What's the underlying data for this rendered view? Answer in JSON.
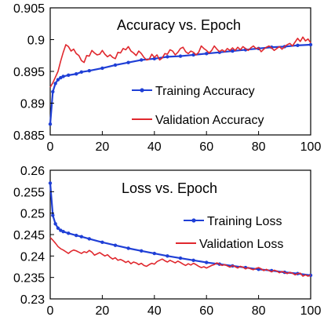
{
  "chart_data": [
    {
      "type": "line",
      "title": "Accuracy vs. Epoch",
      "xlabel": "",
      "ylabel": "",
      "xlim": [
        0,
        100
      ],
      "ylim": [
        0.885,
        0.905
      ],
      "xticks": [
        "0",
        "20",
        "40",
        "60",
        "80",
        "100"
      ],
      "yticks": [
        "0.885",
        "0.89",
        "0.895",
        "0.9",
        "0.905"
      ],
      "grid": false,
      "legend_position": "bottom-right",
      "series": [
        {
          "name": "Training Accuracy",
          "color": "#1f3fd6",
          "marker": "dot",
          "points": [
            [
              0,
              0.8867
            ],
            [
              1,
              0.8918
            ],
            [
              2,
              0.8931
            ],
            [
              3,
              0.8937
            ],
            [
              4,
              0.894
            ],
            [
              5,
              0.8942
            ],
            [
              7,
              0.8944
            ],
            [
              10,
              0.8946
            ],
            [
              12,
              0.8949
            ],
            [
              15,
              0.8951
            ],
            [
              20,
              0.8955
            ],
            [
              25,
              0.896
            ],
            [
              30,
              0.8964
            ],
            [
              35,
              0.8968
            ],
            [
              40,
              0.897
            ],
            [
              45,
              0.8973
            ],
            [
              50,
              0.8974
            ],
            [
              55,
              0.8976
            ],
            [
              60,
              0.8978
            ],
            [
              65,
              0.898
            ],
            [
              70,
              0.8982
            ],
            [
              75,
              0.8984
            ],
            [
              80,
              0.8986
            ],
            [
              85,
              0.8988
            ],
            [
              90,
              0.8989
            ],
            [
              95,
              0.8991
            ],
            [
              100,
              0.8992
            ]
          ]
        },
        {
          "name": "Validation Accuracy",
          "color": "#e0282e",
          "marker": "none",
          "points": [
            [
              0,
              0.8925
            ],
            [
              1,
              0.8932
            ],
            [
              2,
              0.8941
            ],
            [
              3,
              0.895
            ],
            [
              4,
              0.8966
            ],
            [
              5,
              0.898
            ],
            [
              6,
              0.8992
            ],
            [
              7,
              0.8989
            ],
            [
              8,
              0.8982
            ],
            [
              9,
              0.8985
            ],
            [
              10,
              0.8978
            ],
            [
              11,
              0.8975
            ],
            [
              12,
              0.8967
            ],
            [
              13,
              0.8964
            ],
            [
              14,
              0.8975
            ],
            [
              15,
              0.8974
            ],
            [
              16,
              0.8983
            ],
            [
              17,
              0.8979
            ],
            [
              18,
              0.8976
            ],
            [
              19,
              0.8977
            ],
            [
              20,
              0.8983
            ],
            [
              21,
              0.8977
            ],
            [
              22,
              0.8973
            ],
            [
              23,
              0.8976
            ],
            [
              24,
              0.8972
            ],
            [
              25,
              0.897
            ],
            [
              26,
              0.898
            ],
            [
              27,
              0.8979
            ],
            [
              28,
              0.8986
            ],
            [
              29,
              0.8984
            ],
            [
              30,
              0.8989
            ],
            [
              31,
              0.8982
            ],
            [
              32,
              0.8979
            ],
            [
              33,
              0.8975
            ],
            [
              34,
              0.8982
            ],
            [
              35,
              0.8978
            ],
            [
              36,
              0.8972
            ],
            [
              37,
              0.8968
            ],
            [
              38,
              0.8969
            ],
            [
              39,
              0.8977
            ],
            [
              40,
              0.8972
            ],
            [
              41,
              0.8976
            ],
            [
              42,
              0.8968
            ],
            [
              43,
              0.8971
            ],
            [
              44,
              0.8978
            ],
            [
              45,
              0.8977
            ],
            [
              46,
              0.8984
            ],
            [
              47,
              0.8982
            ],
            [
              48,
              0.8976
            ],
            [
              49,
              0.898
            ],
            [
              50,
              0.8986
            ],
            [
              51,
              0.8988
            ],
            [
              52,
              0.8981
            ],
            [
              53,
              0.8978
            ],
            [
              54,
              0.8982
            ],
            [
              55,
              0.898
            ],
            [
              56,
              0.8976
            ],
            [
              57,
              0.898
            ],
            [
              58,
              0.899
            ],
            [
              59,
              0.8986
            ],
            [
              60,
              0.8983
            ],
            [
              61,
              0.8979
            ],
            [
              62,
              0.8983
            ],
            [
              63,
              0.899
            ],
            [
              64,
              0.8985
            ],
            [
              65,
              0.8981
            ],
            [
              66,
              0.8984
            ],
            [
              67,
              0.8981
            ],
            [
              68,
              0.8986
            ],
            [
              69,
              0.8983
            ],
            [
              70,
              0.8987
            ],
            [
              71,
              0.8983
            ],
            [
              72,
              0.8988
            ],
            [
              73,
              0.8984
            ],
            [
              74,
              0.8989
            ],
            [
              75,
              0.8986
            ],
            [
              76,
              0.8983
            ],
            [
              77,
              0.8987
            ],
            [
              78,
              0.899
            ],
            [
              79,
              0.8986
            ],
            [
              80,
              0.8987
            ],
            [
              81,
              0.8981
            ],
            [
              82,
              0.8985
            ],
            [
              83,
              0.8988
            ],
            [
              84,
              0.899
            ],
            [
              85,
              0.8987
            ],
            [
              86,
              0.8983
            ],
            [
              87,
              0.8986
            ],
            [
              88,
              0.8989
            ],
            [
              89,
              0.8985
            ],
            [
              90,
              0.8989
            ],
            [
              91,
              0.8992
            ],
            [
              92,
              0.8994
            ],
            [
              93,
              0.899
            ],
            [
              94,
              0.8996
            ],
            [
              95,
              0.9002
            ],
            [
              96,
              0.8997
            ],
            [
              97,
              0.9004
            ],
            [
              98,
              0.8998
            ],
            [
              99,
              0.9001
            ],
            [
              100,
              0.8995
            ]
          ]
        }
      ]
    },
    {
      "type": "line",
      "title": "Loss vs. Epoch",
      "xlabel": "",
      "ylabel": "",
      "xlim": [
        0,
        100
      ],
      "ylim": [
        0.23,
        0.26
      ],
      "xticks": [
        "0",
        "20",
        "40",
        "60",
        "80",
        "100"
      ],
      "yticks": [
        "0.23",
        "0.235",
        "0.24",
        "0.245",
        "0.25",
        "0.255",
        "0.26"
      ],
      "grid": false,
      "legend_position": "top-right",
      "series": [
        {
          "name": "Training Loss",
          "color": "#1f3fd6",
          "marker": "dot",
          "points": [
            [
              0,
              0.257
            ],
            [
              1,
              0.2495
            ],
            [
              2,
              0.2475
            ],
            [
              3,
              0.2465
            ],
            [
              4,
              0.246
            ],
            [
              5,
              0.2457
            ],
            [
              7,
              0.2453
            ],
            [
              10,
              0.2448
            ],
            [
              12,
              0.2445
            ],
            [
              15,
              0.244
            ],
            [
              20,
              0.2432
            ],
            [
              25,
              0.2425
            ],
            [
              30,
              0.2418
            ],
            [
              35,
              0.2412
            ],
            [
              40,
              0.2406
            ],
            [
              45,
              0.24
            ],
            [
              50,
              0.2395
            ],
            [
              55,
              0.239
            ],
            [
              60,
              0.2385
            ],
            [
              65,
              0.2381
            ],
            [
              70,
              0.2377
            ],
            [
              75,
              0.2373
            ],
            [
              80,
              0.2369
            ],
            [
              85,
              0.2366
            ],
            [
              90,
              0.2362
            ],
            [
              95,
              0.2359
            ],
            [
              100,
              0.2355
            ]
          ]
        },
        {
          "name": "Validation Loss",
          "color": "#e0282e",
          "marker": "none",
          "points": [
            [
              0,
              0.2443
            ],
            [
              1,
              0.2437
            ],
            [
              2,
              0.243
            ],
            [
              3,
              0.2422
            ],
            [
              4,
              0.2417
            ],
            [
              5,
              0.2414
            ],
            [
              6,
              0.241
            ],
            [
              7,
              0.2406
            ],
            [
              8,
              0.2411
            ],
            [
              9,
              0.2414
            ],
            [
              10,
              0.2412
            ],
            [
              11,
              0.2409
            ],
            [
              12,
              0.2406
            ],
            [
              13,
              0.241
            ],
            [
              14,
              0.2408
            ],
            [
              15,
              0.2413
            ],
            [
              16,
              0.2409
            ],
            [
              17,
              0.2402
            ],
            [
              18,
              0.2405
            ],
            [
              19,
              0.2408
            ],
            [
              20,
              0.2404
            ],
            [
              21,
              0.24
            ],
            [
              22,
              0.2403
            ],
            [
              23,
              0.2397
            ],
            [
              24,
              0.2393
            ],
            [
              25,
              0.2396
            ],
            [
              26,
              0.239
            ],
            [
              27,
              0.2392
            ],
            [
              28,
              0.2389
            ],
            [
              29,
              0.2385
            ],
            [
              30,
              0.2388
            ],
            [
              31,
              0.2382
            ],
            [
              32,
              0.2386
            ],
            [
              33,
              0.2384
            ],
            [
              34,
              0.238
            ],
            [
              35,
              0.2383
            ],
            [
              36,
              0.2378
            ],
            [
              37,
              0.2376
            ],
            [
              38,
              0.238
            ],
            [
              39,
              0.2383
            ],
            [
              40,
              0.2381
            ],
            [
              41,
              0.2387
            ],
            [
              42,
              0.239
            ],
            [
              43,
              0.2393
            ],
            [
              44,
              0.2389
            ],
            [
              45,
              0.2386
            ],
            [
              46,
              0.239
            ],
            [
              47,
              0.2387
            ],
            [
              48,
              0.2384
            ],
            [
              49,
              0.2388
            ],
            [
              50,
              0.2385
            ],
            [
              51,
              0.2381
            ],
            [
              52,
              0.2378
            ],
            [
              53,
              0.2382
            ],
            [
              54,
              0.2379
            ],
            [
              55,
              0.2383
            ],
            [
              56,
              0.238
            ],
            [
              57,
              0.2376
            ],
            [
              58,
              0.2373
            ],
            [
              59,
              0.2375
            ],
            [
              60,
              0.2372
            ],
            [
              61,
              0.2375
            ],
            [
              62,
              0.2378
            ],
            [
              63,
              0.238
            ],
            [
              64,
              0.2384
            ],
            [
              65,
              0.2381
            ],
            [
              66,
              0.2378
            ],
            [
              67,
              0.238
            ],
            [
              68,
              0.2377
            ],
            [
              69,
              0.2374
            ],
            [
              70,
              0.2378
            ],
            [
              71,
              0.2375
            ],
            [
              72,
              0.2372
            ],
            [
              73,
              0.2376
            ],
            [
              74,
              0.2374
            ],
            [
              75,
              0.237
            ],
            [
              76,
              0.2373
            ],
            [
              77,
              0.237
            ],
            [
              78,
              0.2368
            ],
            [
              79,
              0.2371
            ],
            [
              80,
              0.2373
            ],
            [
              81,
              0.237
            ],
            [
              82,
              0.2366
            ],
            [
              83,
              0.2369
            ],
            [
              84,
              0.2366
            ],
            [
              85,
              0.2363
            ],
            [
              86,
              0.2367
            ],
            [
              87,
              0.2365
            ],
            [
              88,
              0.2361
            ],
            [
              89,
              0.2364
            ],
            [
              90,
              0.2362
            ],
            [
              91,
              0.2359
            ],
            [
              92,
              0.2362
            ],
            [
              93,
              0.236
            ],
            [
              94,
              0.2356
            ],
            [
              95,
              0.2359
            ],
            [
              96,
              0.236
            ],
            [
              97,
              0.2353
            ],
            [
              98,
              0.2356
            ],
            [
              99,
              0.2353
            ],
            [
              100,
              0.2356
            ]
          ]
        }
      ]
    }
  ]
}
